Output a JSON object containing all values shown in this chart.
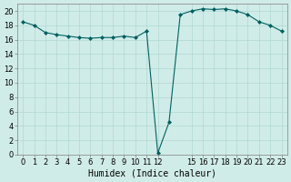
{
  "xlabel": "Humidex (Indice chaleur)",
  "ylabel": "",
  "bg_color": "#d0ece8",
  "grid_color": "#b0d8d0",
  "line_color": "#006060",
  "marker_color": "#006060",
  "x_values": [
    0,
    1,
    2,
    3,
    4,
    5,
    6,
    7,
    8,
    9,
    10,
    11,
    12,
    13,
    14,
    15,
    16,
    17,
    18,
    19,
    20,
    21,
    22,
    23
  ],
  "y_values": [
    18.5,
    18.0,
    17.0,
    16.7,
    16.5,
    16.3,
    16.2,
    16.3,
    16.3,
    16.5,
    16.3,
    17.2,
    0.2,
    4.5,
    19.5,
    20.0,
    20.3,
    20.2,
    20.3,
    20.0,
    19.5,
    18.5,
    18.0,
    17.2
  ],
  "ylim": [
    0,
    21
  ],
  "xlim": [
    -0.5,
    23.5
  ],
  "yticks": [
    0,
    2,
    4,
    6,
    8,
    10,
    12,
    14,
    16,
    18,
    20
  ],
  "xtick_positions": [
    0,
    1,
    2,
    3,
    4,
    5,
    6,
    7,
    8,
    9,
    10,
    11,
    12,
    15,
    16,
    17,
    18,
    19,
    20,
    21,
    22,
    23
  ],
  "xtick_labels": [
    "0",
    "1",
    "2",
    "3",
    "4",
    "5",
    "6",
    "7",
    "8",
    "9",
    "10",
    "11",
    "12",
    "15",
    "16",
    "17",
    "18",
    "19",
    "20",
    "21",
    "22",
    "23"
  ],
  "label_fontsize": 7,
  "tick_fontsize": 6
}
